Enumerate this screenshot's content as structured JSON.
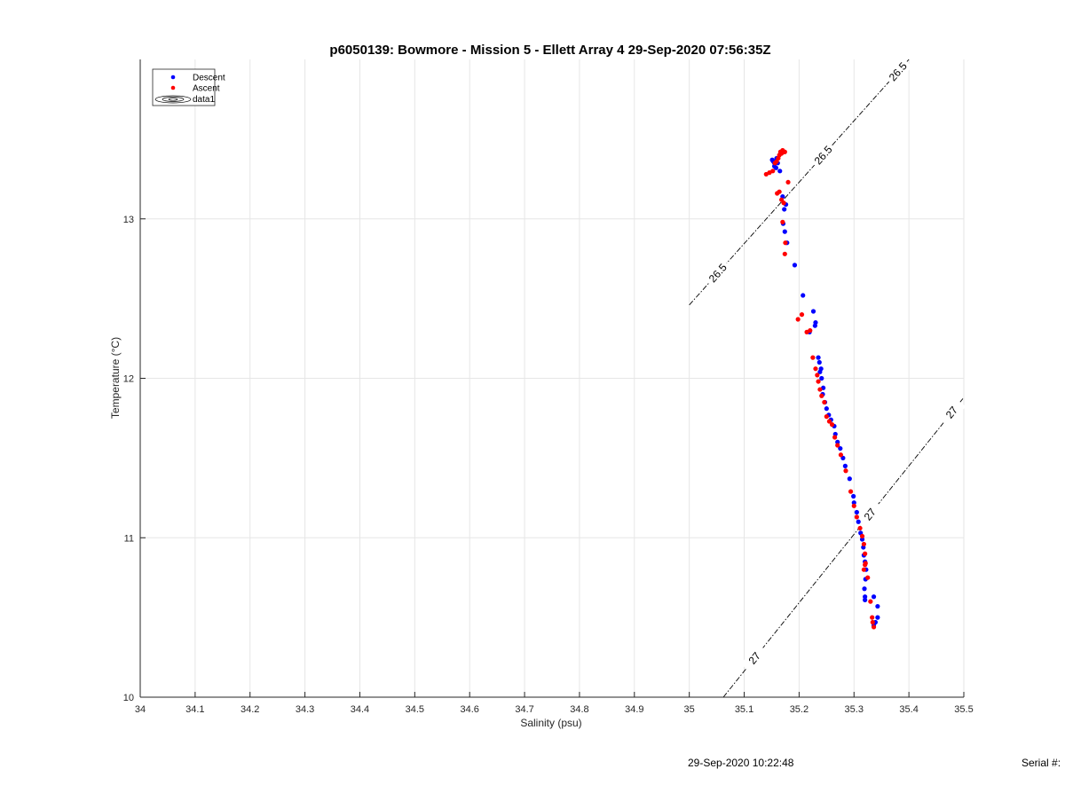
{
  "chart_data": {
    "type": "scatter",
    "title": "p6050139: Bowmore - Mission 5 - Ellett Array 4 29-Sep-2020 07:56:35Z",
    "xlabel": "Salinity (psu)",
    "ylabel": "Temperature (°C)",
    "xlim": [
      34,
      35.5
    ],
    "ylim": [
      10,
      14
    ],
    "x_ticks": [
      "34",
      "34.1",
      "34.2",
      "34.3",
      "34.4",
      "34.5",
      "34.6",
      "34.7",
      "34.8",
      "34.9",
      "35",
      "35.1",
      "35.2",
      "35.3",
      "35.4",
      "35.5"
    ],
    "y_ticks": [
      "10",
      "11",
      "12",
      "13"
    ],
    "grid": true,
    "legend": {
      "position": "top-left",
      "entries": [
        "Descent",
        "Ascent",
        "data1"
      ]
    },
    "colors": {
      "descent": "#0000ff",
      "ascent": "#ff0000",
      "contour": "#000000",
      "grid": "#e6e6e6"
    },
    "series": [
      {
        "name": "Descent",
        "x": [
          35.151,
          35.153,
          35.155,
          35.157,
          35.159,
          35.161,
          35.155,
          35.158,
          35.165,
          35.17,
          35.176,
          35.173,
          35.171,
          35.174,
          35.178,
          35.192,
          35.207,
          35.226,
          35.23,
          35.229,
          35.219,
          35.235,
          35.237,
          35.24,
          35.238,
          35.241,
          35.244,
          35.243,
          35.247,
          35.25,
          35.254,
          35.258,
          35.264,
          35.266,
          35.27,
          35.275,
          35.28,
          35.284,
          35.292,
          35.299,
          35.3,
          35.305,
          35.308,
          35.312,
          35.315,
          35.317,
          35.318,
          35.32,
          35.322,
          35.321,
          35.319,
          35.32,
          35.32,
          35.336,
          35.343,
          35.343,
          35.339,
          35.336
        ],
        "y": [
          13.37,
          13.36,
          13.35,
          13.36,
          13.38,
          13.35,
          13.33,
          13.32,
          13.3,
          13.14,
          13.09,
          13.06,
          12.97,
          12.92,
          12.85,
          12.71,
          12.52,
          12.42,
          12.35,
          12.33,
          12.29,
          12.13,
          12.1,
          12.06,
          12.04,
          12.0,
          11.94,
          11.9,
          11.85,
          11.81,
          11.77,
          11.74,
          11.7,
          11.65,
          11.6,
          11.56,
          11.5,
          11.45,
          11.37,
          11.26,
          11.22,
          11.16,
          11.1,
          11.03,
          10.99,
          10.94,
          10.89,
          10.85,
          10.8,
          10.74,
          10.68,
          10.63,
          10.61,
          10.63,
          10.57,
          10.5,
          10.47,
          10.45
        ]
      },
      {
        "name": "Ascent",
        "x": [
          35.14,
          35.146,
          35.152,
          35.156,
          35.159,
          35.162,
          35.164,
          35.166,
          35.168,
          35.17,
          35.172,
          35.174,
          35.16,
          35.164,
          35.168,
          35.172,
          35.18,
          35.17,
          35.175,
          35.174,
          35.198,
          35.205,
          35.214,
          35.22,
          35.225,
          35.23,
          35.233,
          35.235,
          35.238,
          35.241,
          35.246,
          35.25,
          35.255,
          35.26,
          35.265,
          35.27,
          35.276,
          35.285,
          35.294,
          35.3,
          35.305,
          35.311,
          35.315,
          35.318,
          35.32,
          35.321,
          35.318,
          35.32,
          35.325,
          35.33,
          35.333,
          35.334,
          35.336
        ],
        "y": [
          13.28,
          13.29,
          13.3,
          13.35,
          13.36,
          13.38,
          13.4,
          13.42,
          13.41,
          13.43,
          13.42,
          13.42,
          13.16,
          13.17,
          13.12,
          13.1,
          13.23,
          12.98,
          12.85,
          12.78,
          12.37,
          12.4,
          12.29,
          12.3,
          12.13,
          12.06,
          12.02,
          11.98,
          11.93,
          11.89,
          11.85,
          11.76,
          11.73,
          11.71,
          11.63,
          11.58,
          11.52,
          11.42,
          11.29,
          11.2,
          11.13,
          11.06,
          11.01,
          10.96,
          10.9,
          10.84,
          10.8,
          10.83,
          10.75,
          10.6,
          10.5,
          10.47,
          10.44
        ]
      }
    ],
    "contours": [
      {
        "label": "26.5",
        "x": [
          35.0,
          35.4
        ],
        "y": [
          12.46,
          14.0
        ]
      },
      {
        "label": "27",
        "x": [
          35.062,
          35.5
        ],
        "y": [
          10.0,
          11.88
        ]
      }
    ]
  },
  "footer": {
    "timestamp": "29-Sep-2020 10:22:48",
    "serial": "Serial #:"
  }
}
